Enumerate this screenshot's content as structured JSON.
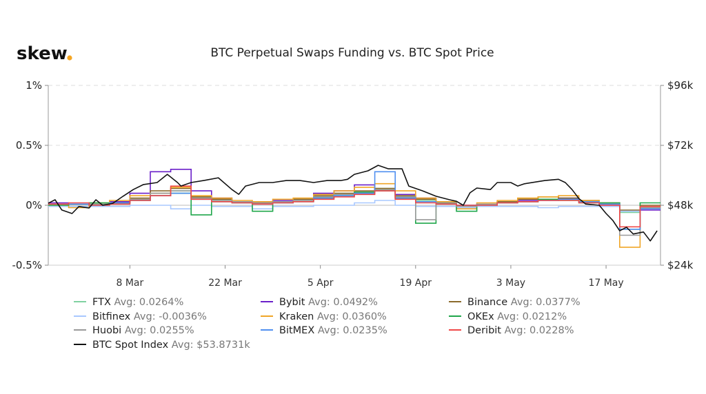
{
  "logo": {
    "text": "skew",
    "dot_color": "#f5a623"
  },
  "chart_data": {
    "type": "line",
    "title": "BTC Perpetual Swaps Funding vs. BTC Spot Price",
    "x_unit": "days since 24 Feb",
    "x_range": [
      0,
      90
    ],
    "x_ticks": [
      {
        "day": 12,
        "label": "8 Mar"
      },
      {
        "day": 26,
        "label": "22 Mar"
      },
      {
        "day": 40,
        "label": "5 Apr"
      },
      {
        "day": 54,
        "label": "19 Apr"
      },
      {
        "day": 68,
        "label": "3 May"
      },
      {
        "day": 82,
        "label": "17 May"
      }
    ],
    "y_left": {
      "range": [
        -0.5,
        1
      ],
      "ticks": [
        {
          "v": 1,
          "label": "1%"
        },
        {
          "v": 0.5,
          "label": "0.5%"
        },
        {
          "v": 0,
          "label": "0%"
        },
        {
          "v": -0.5,
          "label": "-0.5%"
        }
      ]
    },
    "y_right": {
      "range": [
        24,
        96
      ],
      "ticks": [
        {
          "v": 96,
          "label": "$96k"
        },
        {
          "v": 72,
          "label": "$72k"
        },
        {
          "v": 48,
          "label": "$48k"
        },
        {
          "v": 24,
          "label": "$24k"
        }
      ]
    },
    "grid": "horizontal dashed",
    "legend_position": "bottom",
    "funding_step_days": 3,
    "funding_series": [
      {
        "name": "FTX",
        "avg": "Avg: 0.0264%",
        "color": "#7fd1a0",
        "values": [
          0.01,
          0.01,
          0.0,
          0.02,
          0.05,
          0.1,
          0.12,
          0.06,
          0.04,
          0.03,
          0.02,
          0.03,
          0.04,
          0.06,
          0.08,
          0.1,
          0.14,
          0.07,
          0.04,
          0.02,
          -0.01,
          0.0,
          0.02,
          0.03,
          0.04,
          0.05,
          0.03,
          0.01,
          -0.06,
          -0.02
        ]
      },
      {
        "name": "Bybit",
        "avg": "Avg: 0.0492%",
        "color": "#6a1fc9",
        "values": [
          0.02,
          0.01,
          0.01,
          0.03,
          0.1,
          0.28,
          0.3,
          0.12,
          0.06,
          0.03,
          0.02,
          0.04,
          0.05,
          0.1,
          0.12,
          0.17,
          0.12,
          0.09,
          0.06,
          0.02,
          0.0,
          0.01,
          0.03,
          0.04,
          0.05,
          0.06,
          0.03,
          0.0,
          -0.05,
          -0.04
        ]
      },
      {
        "name": "Binance",
        "avg": "Avg: 0.0377%",
        "color": "#8b6a2b",
        "values": [
          0.01,
          0.01,
          0.01,
          0.02,
          0.06,
          0.12,
          0.14,
          0.07,
          0.05,
          0.03,
          0.02,
          0.03,
          0.05,
          0.08,
          0.1,
          0.12,
          0.14,
          0.08,
          0.05,
          0.02,
          0.0,
          0.01,
          0.03,
          0.05,
          0.07,
          0.06,
          0.04,
          0.02,
          -0.04,
          0.0
        ]
      },
      {
        "name": "Bitfinex",
        "avg": "Avg: -0.0036%",
        "color": "#a8c8ff",
        "values": [
          -0.01,
          -0.01,
          -0.01,
          -0.01,
          0.0,
          0.0,
          -0.03,
          0.0,
          -0.01,
          -0.01,
          -0.03,
          -0.01,
          -0.01,
          0.0,
          0.0,
          0.02,
          0.04,
          0.0,
          -0.01,
          -0.01,
          -0.02,
          -0.01,
          -0.01,
          -0.01,
          -0.02,
          -0.01,
          -0.01,
          -0.01,
          -0.05,
          -0.02
        ]
      },
      {
        "name": "Kraken",
        "avg": "Avg: 0.0360%",
        "color": "#f0a526",
        "values": [
          0.0,
          -0.02,
          0.02,
          0.04,
          0.08,
          0.1,
          0.15,
          0.08,
          0.06,
          0.04,
          0.03,
          0.05,
          0.06,
          0.09,
          0.12,
          0.15,
          0.18,
          0.12,
          0.06,
          0.03,
          -0.03,
          0.02,
          0.04,
          0.06,
          0.07,
          0.08,
          0.04,
          0.02,
          -0.35,
          -0.02
        ]
      },
      {
        "name": "OKEx",
        "avg": "Avg: 0.0212%",
        "color": "#1ea64a",
        "values": [
          0.0,
          0.01,
          0.02,
          0.02,
          0.04,
          0.08,
          0.1,
          -0.08,
          0.03,
          0.02,
          -0.05,
          0.02,
          0.03,
          0.06,
          0.09,
          0.11,
          0.12,
          0.06,
          -0.15,
          0.02,
          -0.05,
          0.01,
          0.02,
          0.03,
          0.05,
          0.04,
          0.02,
          0.02,
          -0.2,
          0.02
        ]
      },
      {
        "name": "Huobi",
        "avg": "Avg: 0.0255%",
        "color": "#999999",
        "values": [
          0.01,
          0.01,
          0.01,
          0.02,
          0.05,
          0.1,
          0.12,
          0.06,
          0.04,
          0.03,
          0.02,
          0.03,
          0.04,
          0.07,
          0.09,
          0.1,
          0.13,
          0.07,
          -0.12,
          0.02,
          -0.01,
          0.01,
          0.02,
          0.03,
          0.04,
          0.05,
          0.03,
          0.01,
          -0.25,
          -0.02
        ]
      },
      {
        "name": "BitMEX",
        "avg": "Avg: 0.0235%",
        "color": "#4f8ff0",
        "values": [
          0.01,
          0.01,
          0.0,
          0.02,
          0.04,
          0.08,
          0.1,
          0.05,
          0.03,
          0.02,
          0.01,
          0.02,
          0.03,
          0.06,
          0.08,
          0.1,
          0.28,
          0.06,
          0.03,
          0.01,
          0.0,
          0.0,
          0.02,
          0.03,
          0.04,
          0.05,
          0.03,
          0.01,
          -0.2,
          -0.03
        ]
      },
      {
        "name": "Deribit",
        "avg": "Avg: 0.0228%",
        "color": "#f04848",
        "values": [
          0.01,
          0.02,
          0.0,
          0.01,
          0.04,
          0.08,
          0.16,
          0.05,
          0.03,
          0.02,
          0.01,
          0.02,
          0.03,
          0.05,
          0.07,
          0.09,
          0.12,
          0.05,
          0.02,
          0.01,
          0.0,
          0.0,
          0.02,
          0.03,
          0.04,
          0.04,
          0.02,
          0.0,
          -0.18,
          -0.01
        ]
      }
    ],
    "spot_series": {
      "name": "BTC Spot Index",
      "avg": "Avg: $53.8731k",
      "color": "#111111",
      "x": [
        0,
        1,
        2,
        3.5,
        4.5,
        6,
        7,
        8,
        9.5,
        11,
        12.5,
        14,
        16,
        17.5,
        19,
        19.5,
        21,
        23,
        25,
        27,
        28,
        29,
        31,
        33,
        35,
        37,
        39,
        41,
        43,
        44,
        45,
        47,
        48.5,
        50,
        52,
        53,
        55,
        57,
        59,
        60,
        61,
        62,
        63,
        65,
        66,
        68,
        69,
        70,
        73,
        75,
        76,
        77,
        78,
        79,
        81,
        82,
        83,
        84,
        85,
        86,
        87.5,
        88.5,
        89.5
      ],
      "values": [
        48.8,
        50.2,
        46.1,
        44.7,
        47.5,
        46.9,
        50.2,
        48,
        48.8,
        51.6,
        54.3,
        56.3,
        57.1,
        60.4,
        57.1,
        55.7,
        57.1,
        58,
        59,
        54.3,
        52.4,
        55.7,
        57.1,
        57.1,
        57.9,
        57.9,
        57.1,
        57.9,
        57.9,
        58.4,
        60.4,
        61.8,
        64,
        62.6,
        62.6,
        55.7,
        53.8,
        51.6,
        50.2,
        49.6,
        48,
        53,
        54.9,
        54.3,
        57.1,
        57.1,
        55.7,
        56.6,
        57.9,
        58.4,
        57.1,
        54.3,
        50.7,
        48.5,
        48,
        44.7,
        41.9,
        37.8,
        39.2,
        36.5,
        37.3,
        33.7,
        37.8
      ]
    }
  }
}
